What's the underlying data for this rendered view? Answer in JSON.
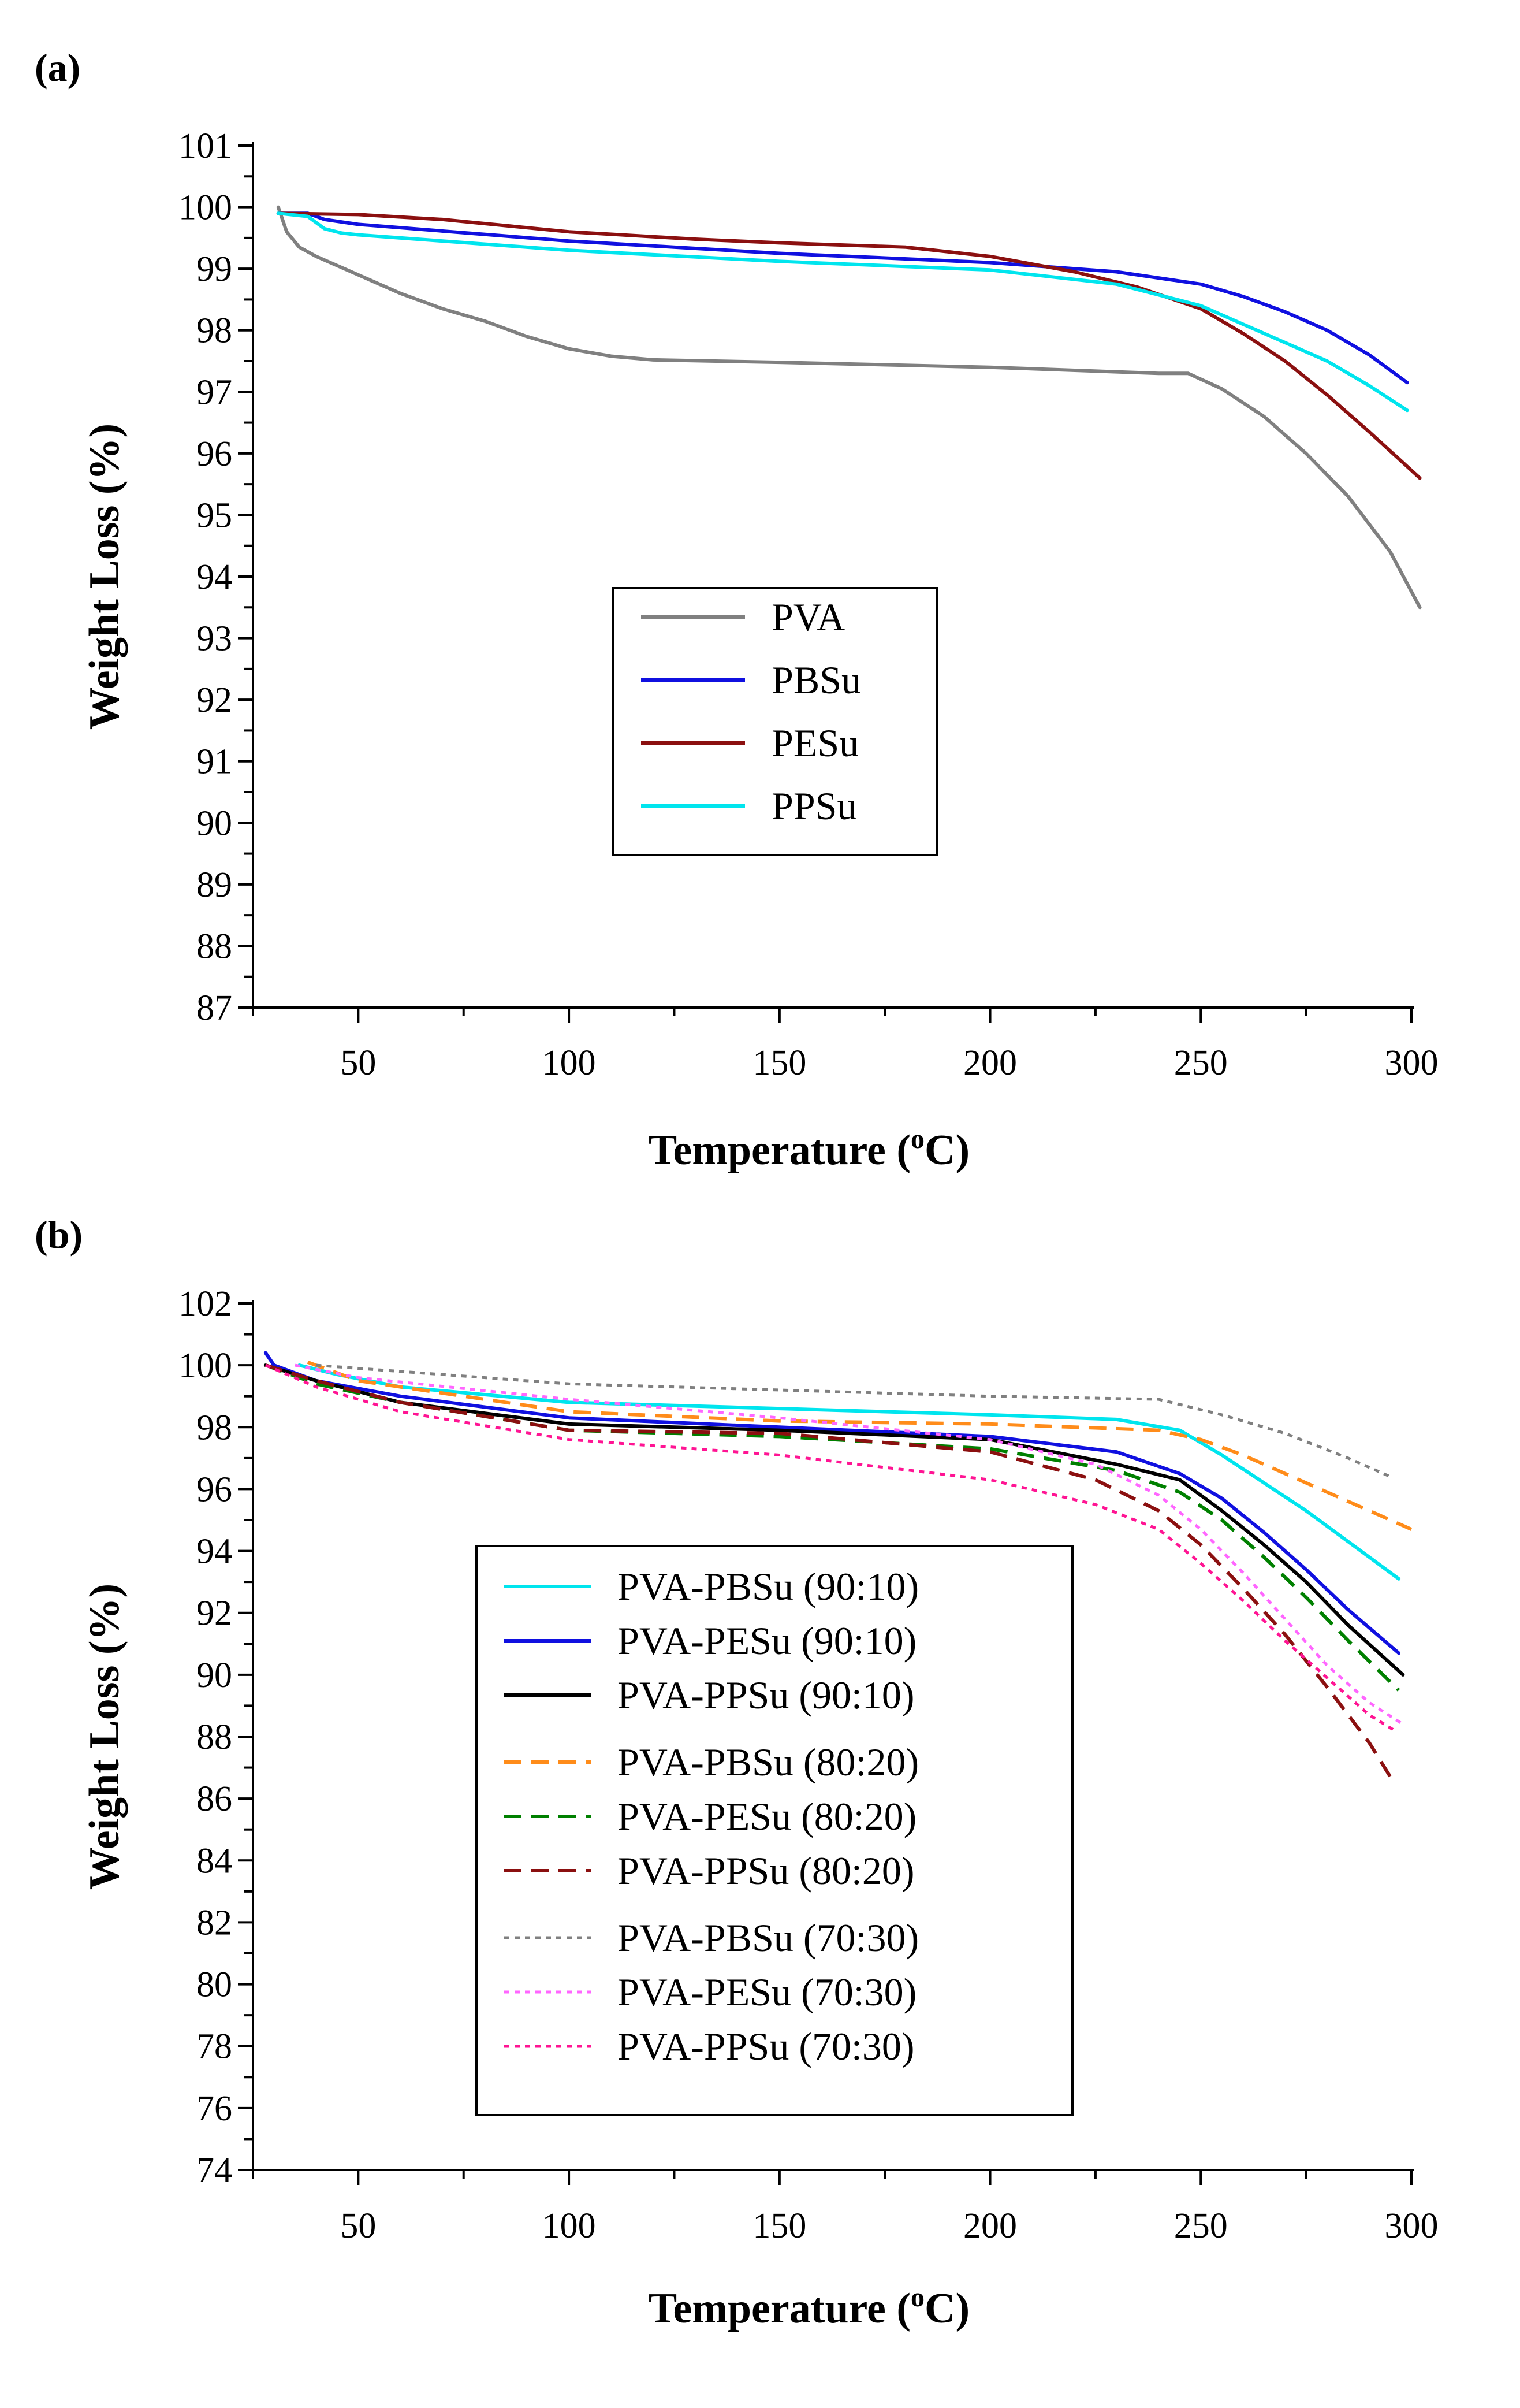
{
  "chart_data": [
    {
      "type": "line",
      "panel_label": "(a)",
      "xlabel": "Temperature (",
      "xlabel_sup": "o",
      "xlabel_end": "C)",
      "ylabel": "Weight Loss (%)",
      "xlim": [
        25,
        300
      ],
      "ylim": [
        87,
        101
      ],
      "xticks": [
        50,
        100,
        150,
        200,
        250,
        300
      ],
      "yticks": [
        87,
        88,
        89,
        90,
        91,
        92,
        93,
        94,
        95,
        96,
        97,
        98,
        99,
        100,
        101
      ],
      "series": [
        {
          "name": "PVA",
          "color": "#808080",
          "dash": "solid",
          "x": [
            31,
            33,
            36,
            40,
            45,
            50,
            60,
            70,
            80,
            90,
            100,
            110,
            120,
            150,
            200,
            240,
            247,
            255,
            265,
            275,
            285,
            295,
            302
          ],
          "y": [
            100,
            99.6,
            99.35,
            99.2,
            99.05,
            98.9,
            98.6,
            98.35,
            98.15,
            97.9,
            97.7,
            97.58,
            97.52,
            97.48,
            97.4,
            97.3,
            97.3,
            97.05,
            96.6,
            96.0,
            95.3,
            94.4,
            93.5
          ]
        },
        {
          "name": "PBSu",
          "color": "#1010e0",
          "dash": "solid",
          "x": [
            31,
            38,
            42,
            50,
            100,
            150,
            200,
            230,
            250,
            260,
            270,
            280,
            290,
            299
          ],
          "y": [
            99.9,
            99.9,
            99.8,
            99.72,
            99.45,
            99.25,
            99.1,
            98.95,
            98.75,
            98.55,
            98.3,
            98.0,
            97.6,
            97.15
          ]
        },
        {
          "name": "PESu",
          "color": "#8b1010",
          "dash": "solid",
          "x": [
            31,
            50,
            70,
            100,
            130,
            150,
            180,
            200,
            220,
            235,
            250,
            260,
            270,
            280,
            290,
            302
          ],
          "y": [
            99.9,
            99.88,
            99.8,
            99.6,
            99.48,
            99.42,
            99.35,
            99.2,
            98.95,
            98.7,
            98.35,
            97.95,
            97.5,
            96.95,
            96.35,
            95.6
          ]
        },
        {
          "name": "PPSu",
          "color": "#00e5ee",
          "dash": "solid",
          "x": [
            31,
            38,
            42,
            46,
            50,
            100,
            150,
            200,
            230,
            250,
            260,
            270,
            275,
            280,
            290,
            299
          ],
          "y": [
            99.9,
            99.85,
            99.65,
            99.58,
            99.55,
            99.3,
            99.12,
            98.98,
            98.75,
            98.4,
            98.1,
            97.8,
            97.65,
            97.5,
            97.1,
            96.7
          ]
        }
      ]
    },
    {
      "type": "line",
      "panel_label": "(b)",
      "xlabel": "Temperature (",
      "xlabel_sup": "o",
      "xlabel_end": "C)",
      "ylabel": "Weight Loss (%)",
      "xlim": [
        25,
        300
      ],
      "ylim": [
        74,
        102
      ],
      "xticks": [
        50,
        100,
        150,
        200,
        250,
        300
      ],
      "yticks": [
        74,
        76,
        78,
        80,
        82,
        84,
        86,
        88,
        90,
        92,
        94,
        96,
        98,
        100,
        102
      ],
      "series": [
        {
          "name": "PVA-PBSu (90:10)",
          "color": "#00e5ee",
          "dash": "solid",
          "x": [
            36,
            45,
            60,
            100,
            150,
            200,
            230,
            245,
            255,
            265,
            275,
            285,
            297
          ],
          "y": [
            100.0,
            99.7,
            99.3,
            98.8,
            98.6,
            98.4,
            98.25,
            97.9,
            97.1,
            96.2,
            95.3,
            94.3,
            93.1
          ]
        },
        {
          "name": "PVA-PESu (90:10)",
          "color": "#1010e0",
          "dash": "solid",
          "x": [
            28,
            30,
            40,
            60,
            100,
            150,
            200,
            230,
            245,
            255,
            265,
            275,
            285,
            297
          ],
          "y": [
            100.4,
            100.0,
            99.5,
            99.0,
            98.3,
            98.0,
            97.7,
            97.2,
            96.5,
            95.7,
            94.6,
            93.4,
            92.1,
            90.7
          ]
        },
        {
          "name": "PVA-PPSu (90:10)",
          "color": "#000000",
          "dash": "solid",
          "x": [
            28,
            40,
            60,
            100,
            150,
            200,
            230,
            245,
            255,
            265,
            275,
            285,
            298
          ],
          "y": [
            100.0,
            99.5,
            98.8,
            98.1,
            97.9,
            97.6,
            96.8,
            96.3,
            95.3,
            94.2,
            93.0,
            91.6,
            90.0
          ]
        },
        {
          "name": "PVA-PBSu (80:20)",
          "color": "#ff8c1a",
          "dash": "dash",
          "x": [
            38,
            50,
            100,
            150,
            200,
            240,
            250,
            260,
            270,
            280,
            290,
            300
          ],
          "y": [
            100.1,
            99.5,
            98.5,
            98.2,
            98.1,
            97.9,
            97.6,
            97.1,
            96.5,
            95.9,
            95.3,
            94.7
          ]
        },
        {
          "name": "PVA-PESu (80:20)",
          "color": "#008000",
          "dash": "dash",
          "x": [
            28,
            40,
            60,
            100,
            150,
            200,
            230,
            245,
            255,
            265,
            275,
            285,
            297
          ],
          "y": [
            100.0,
            99.4,
            98.8,
            97.9,
            97.7,
            97.3,
            96.6,
            95.9,
            95.0,
            93.8,
            92.5,
            91.1,
            89.5
          ]
        },
        {
          "name": "PVA-PPSu (80:20)",
          "color": "#8b1010",
          "dash": "dash",
          "x": [
            28,
            40,
            60,
            100,
            150,
            200,
            225,
            240,
            250,
            260,
            270,
            280,
            290,
            295
          ],
          "y": [
            100.0,
            99.5,
            98.8,
            97.9,
            97.8,
            97.2,
            96.3,
            95.3,
            94.2,
            92.8,
            91.3,
            89.6,
            87.8,
            86.7
          ]
        },
        {
          "name": "PVA-PBSu (70:30)",
          "color": "#808080",
          "dash": "dot",
          "x": [
            40,
            50,
            100,
            150,
            200,
            240,
            255,
            270,
            285,
            295
          ],
          "y": [
            100.0,
            99.9,
            99.4,
            99.2,
            99.0,
            98.9,
            98.4,
            97.8,
            97.0,
            96.4
          ]
        },
        {
          "name": "PVA-PESu (70:30)",
          "color": "#ff66ff",
          "dash": "dot",
          "x": [
            35,
            50,
            100,
            150,
            200,
            225,
            240,
            250,
            260,
            270,
            280,
            290,
            298
          ],
          "y": [
            100.0,
            99.6,
            98.9,
            98.3,
            97.6,
            96.8,
            95.8,
            94.7,
            93.3,
            91.8,
            90.3,
            89.1,
            88.4
          ]
        },
        {
          "name": "PVA-PPSu (70:30)",
          "color": "#ff1493",
          "dash": "dot",
          "x": [
            28,
            40,
            60,
            100,
            150,
            200,
            225,
            240,
            250,
            260,
            270,
            280,
            290,
            296
          ],
          "y": [
            100.0,
            99.3,
            98.5,
            97.6,
            97.1,
            96.3,
            95.5,
            94.7,
            93.6,
            92.4,
            91.1,
            89.9,
            88.7,
            88.2
          ]
        }
      ]
    }
  ]
}
